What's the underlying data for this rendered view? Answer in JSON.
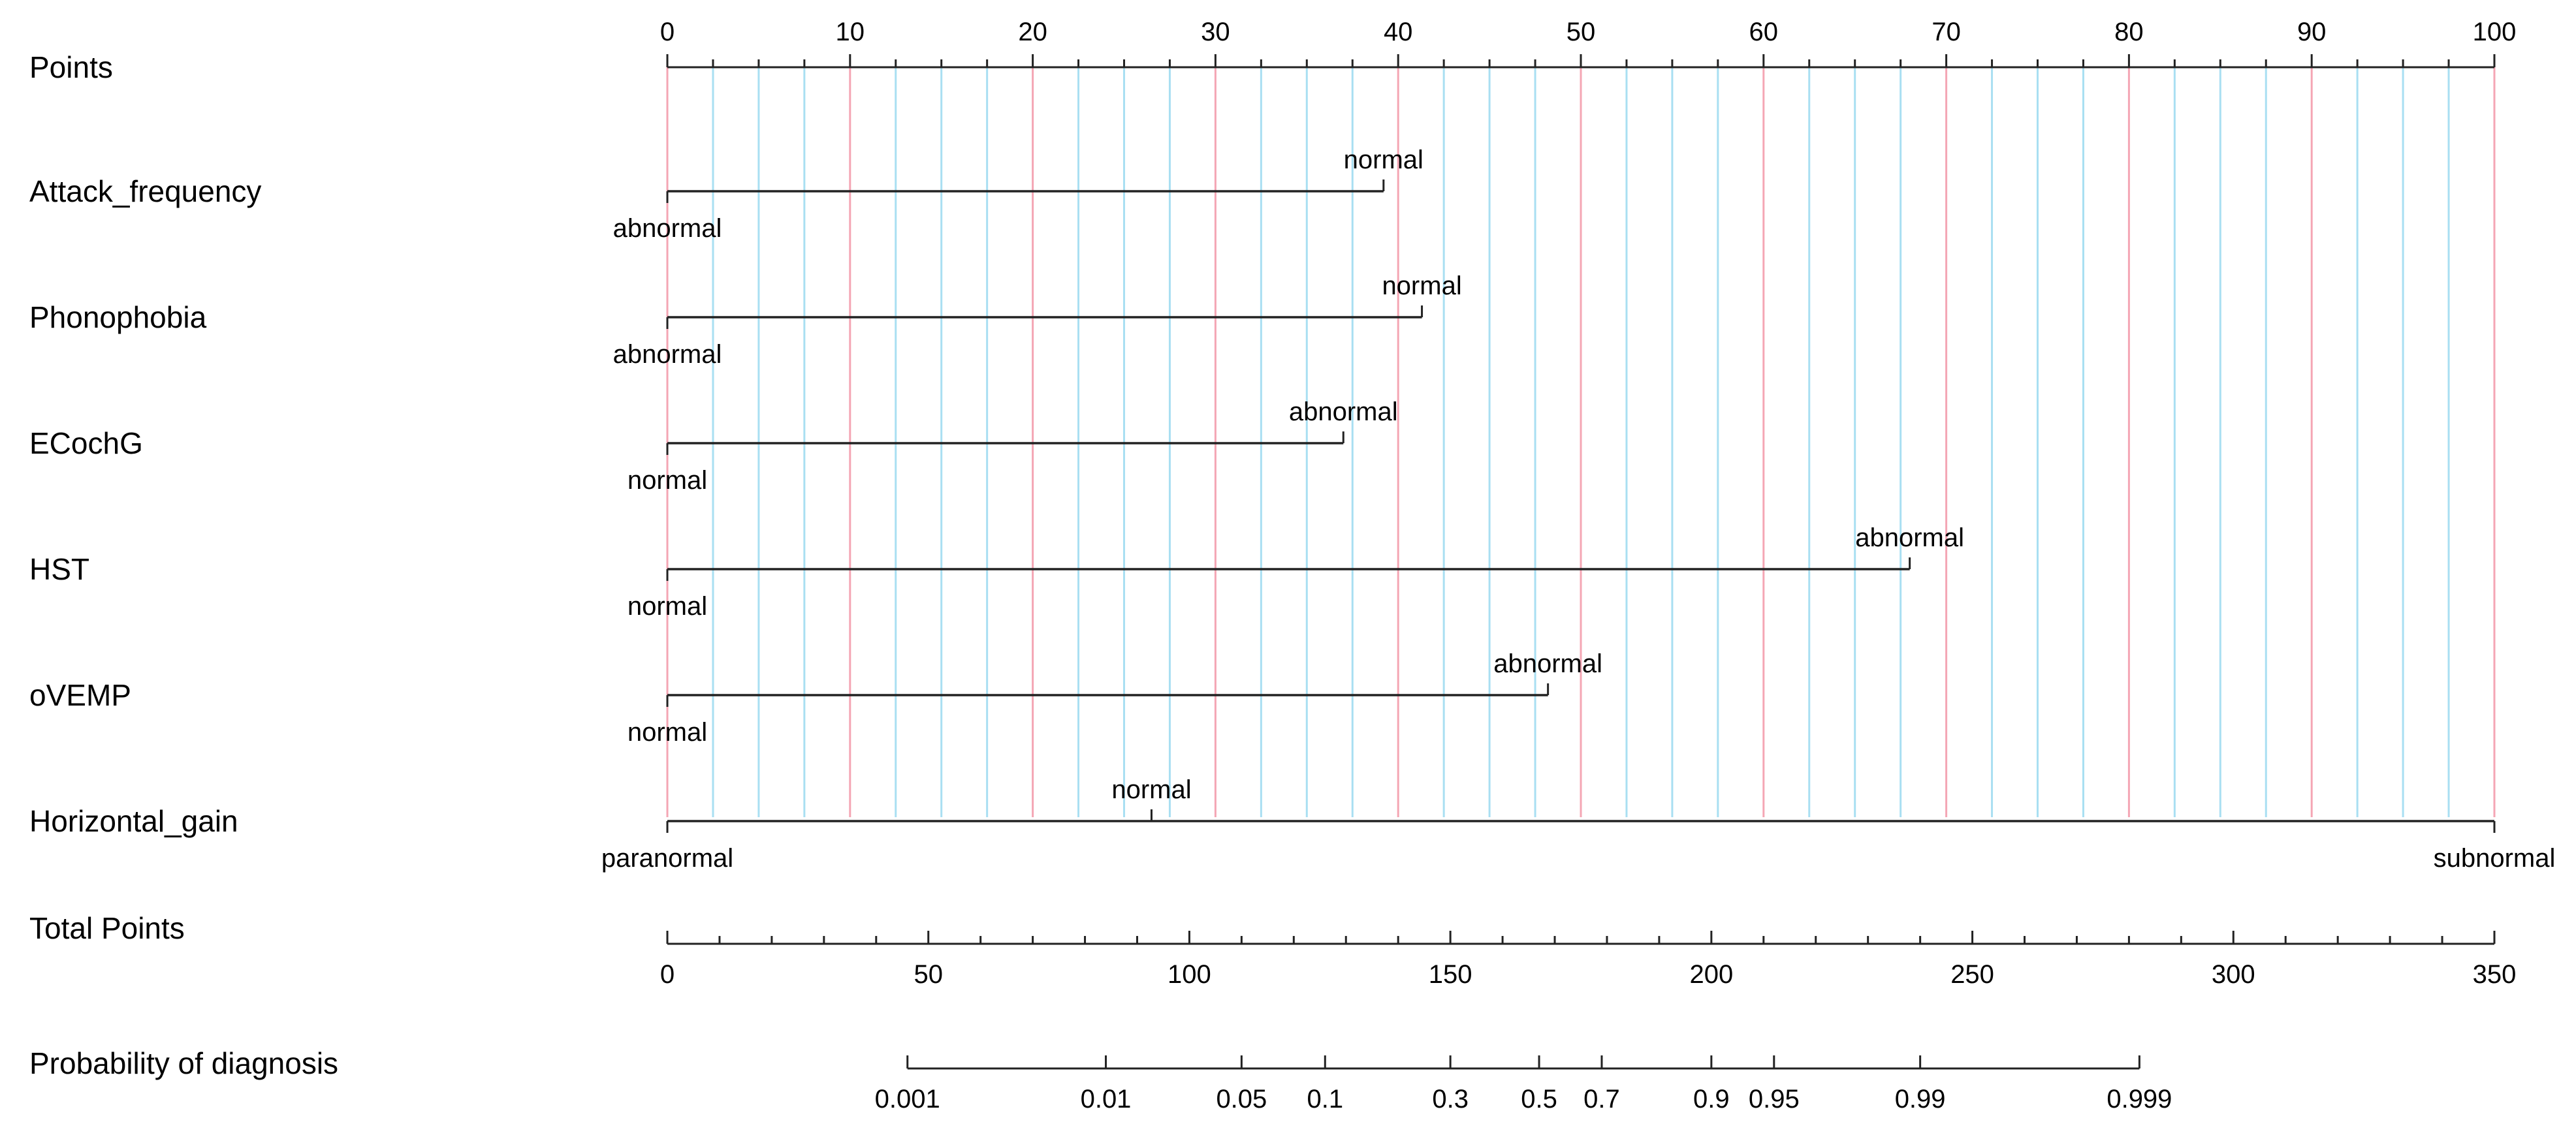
{
  "chart_data": {
    "type": "nomogram",
    "points_axis": {
      "label": "Points",
      "min": 0,
      "max": 100,
      "major_ticks": [
        0,
        10,
        20,
        30,
        40,
        50,
        60,
        70,
        80,
        90,
        100
      ],
      "minor_step": 2.5
    },
    "gridlines": {
      "major_color": "#f4a6b4",
      "minor_color": "#a9dff2"
    },
    "variables": [
      {
        "name": "Attack_frequency",
        "levels": [
          {
            "label": "abnormal",
            "points": 0,
            "label_pos": "below"
          },
          {
            "label": "normal",
            "points": 39.2,
            "label_pos": "above"
          }
        ]
      },
      {
        "name": "Phonophobia",
        "levels": [
          {
            "label": "abnormal",
            "points": 0,
            "label_pos": "below"
          },
          {
            "label": "normal",
            "points": 41.3,
            "label_pos": "above"
          }
        ]
      },
      {
        "name": "ECochG",
        "levels": [
          {
            "label": "normal",
            "points": 0,
            "label_pos": "below"
          },
          {
            "label": "abnormal",
            "points": 37,
            "label_pos": "above"
          }
        ]
      },
      {
        "name": "HST",
        "levels": [
          {
            "label": "normal",
            "points": 0,
            "label_pos": "below"
          },
          {
            "label": "abnormal",
            "points": 68,
            "label_pos": "above"
          }
        ]
      },
      {
        "name": "oVEMP",
        "levels": [
          {
            "label": "normal",
            "points": 0,
            "label_pos": "below"
          },
          {
            "label": "abnormal",
            "points": 48.2,
            "label_pos": "above"
          }
        ]
      },
      {
        "name": "Horizontal_gain",
        "levels": [
          {
            "label": "paranormal",
            "points": 0,
            "label_pos": "below"
          },
          {
            "label": "normal",
            "points": 26.5,
            "label_pos": "above"
          },
          {
            "label": "subnormal",
            "points": 100,
            "label_pos": "below"
          }
        ]
      }
    ],
    "total_points_axis": {
      "label": "Total Points",
      "min": 0,
      "max": 350,
      "ticks": [
        0,
        50,
        100,
        150,
        200,
        250,
        300,
        350
      ]
    },
    "probability_axis": {
      "label": "Probability of diagnosis",
      "ticks": [
        {
          "label": "0.001",
          "total": 46
        },
        {
          "label": "0.01",
          "total": 84
        },
        {
          "label": "0.05",
          "total": 110
        },
        {
          "label": "0.1",
          "total": 126
        },
        {
          "label": "0.3",
          "total": 150
        },
        {
          "label": "0.5",
          "total": 167
        },
        {
          "label": "0.7",
          "total": 179
        },
        {
          "label": "0.9",
          "total": 200
        },
        {
          "label": "0.95",
          "total": 212
        },
        {
          "label": "0.99",
          "total": 240
        },
        {
          "label": "0.999",
          "total": 282
        }
      ]
    }
  }
}
